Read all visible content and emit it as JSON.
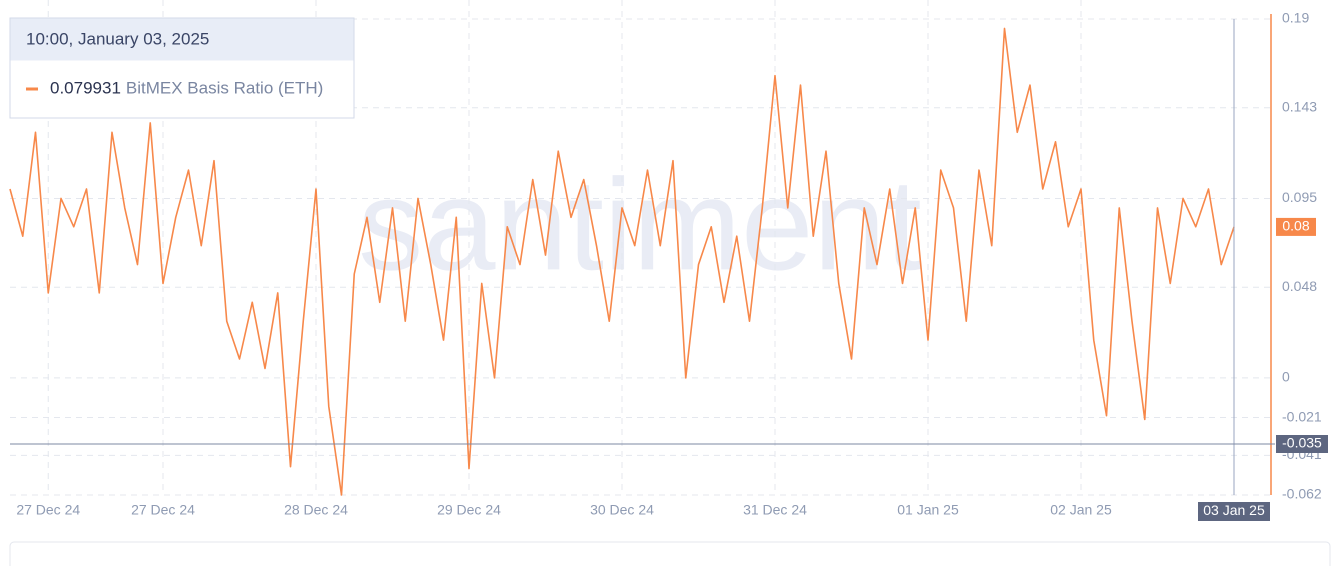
{
  "chart_data": {
    "type": "line",
    "watermark": "santiment",
    "tooltip_title": "10:00, January 03, 2025",
    "crosshair_x_label": "03 Jan 25",
    "crosshair_y": -0.035,
    "last_value_label": "0.08",
    "xlim": [
      0,
      96
    ],
    "xticks": [
      {
        "value": 3,
        "label": "27 Dec 24"
      },
      {
        "value": 12,
        "label": "27 Dec 24"
      },
      {
        "value": 24,
        "label": "28 Dec 24"
      },
      {
        "value": 36,
        "label": "29 Dec 24"
      },
      {
        "value": 48,
        "label": "30 Dec 24"
      },
      {
        "value": 60,
        "label": "31 Dec 24"
      },
      {
        "value": 72,
        "label": "01 Jan 25"
      },
      {
        "value": 84,
        "label": "02 Jan 25"
      }
    ],
    "ylim": [
      -0.062,
      0.19
    ],
    "yticks": [
      0.19,
      0.143,
      0.095,
      0.048,
      0,
      -0.021,
      -0.041,
      -0.062
    ],
    "grid": true,
    "series": [
      {
        "name": "BitMEX Basis Ratio (ETH)",
        "color": "#f7884a",
        "values": [
          0.1,
          0.075,
          0.13,
          0.045,
          0.095,
          0.08,
          0.1,
          0.045,
          0.13,
          0.09,
          0.06,
          0.135,
          0.05,
          0.085,
          0.11,
          0.07,
          0.115,
          0.03,
          0.01,
          0.04,
          0.005,
          0.045,
          -0.047,
          0.03,
          0.1,
          -0.015,
          -0.062,
          0.055,
          0.085,
          0.04,
          0.09,
          0.03,
          0.095,
          0.06,
          0.02,
          0.085,
          -0.048,
          0.05,
          0.0,
          0.08,
          0.06,
          0.105,
          0.065,
          0.12,
          0.085,
          0.105,
          0.07,
          0.03,
          0.09,
          0.07,
          0.11,
          0.07,
          0.115,
          0.0,
          0.06,
          0.08,
          0.04,
          0.075,
          0.03,
          0.09,
          0.16,
          0.09,
          0.155,
          0.075,
          0.12,
          0.05,
          0.01,
          0.09,
          0.06,
          0.1,
          0.05,
          0.09,
          0.02,
          0.11,
          0.09,
          0.03,
          0.11,
          0.07,
          0.185,
          0.13,
          0.155,
          0.1,
          0.125,
          0.08,
          0.1,
          0.02,
          -0.02,
          0.09,
          0.03,
          -0.022,
          0.09,
          0.05,
          0.095,
          0.08,
          0.1,
          0.06,
          0.079931
        ]
      }
    ]
  }
}
